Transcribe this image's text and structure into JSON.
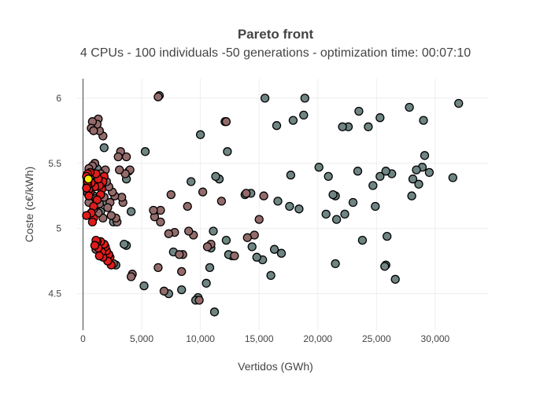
{
  "chart_data": {
    "type": "scatter",
    "title": "Pareto front",
    "subtitle": "4 CPUs - 100 individuals -50 generations - optimization time: 00:07:10",
    "xlabel": "Vertidos (GWh)",
    "ylabel": "Coste (c€/kWh)",
    "xlim": [
      -500,
      34500
    ],
    "ylim": [
      4.22,
      6.15
    ],
    "x_ticks": [
      0,
      5000,
      10000,
      15000,
      20000,
      25000,
      30000
    ],
    "x_tick_labels": [
      "0",
      "5,000",
      "10,000",
      "15,000",
      "20,000",
      "25,000",
      "30,000"
    ],
    "y_ticks": [
      4.5,
      5,
      5.5,
      6
    ],
    "y_tick_labels": [
      "4.5",
      "5",
      "5.5",
      "6"
    ],
    "grid": true,
    "legend": "none",
    "colors": {
      "late": "#6f8583",
      "mid": "#946b6b",
      "early": "#e01b1b",
      "best": "#ffee00",
      "outline": "#000000"
    },
    "series": [
      {
        "group": "late",
        "color": "#6f8583",
        "points": [
          [
            32000,
            5.96
          ],
          [
            31500,
            5.39
          ],
          [
            29500,
            5.43
          ],
          [
            29100,
            5.56
          ],
          [
            28900,
            5.47
          ],
          [
            29000,
            5.83
          ],
          [
            28600,
            5.34
          ],
          [
            28400,
            5.45
          ],
          [
            28100,
            5.38
          ],
          [
            28000,
            5.25
          ],
          [
            27800,
            5.93
          ],
          [
            26600,
            4.61
          ],
          [
            26300,
            5.42
          ],
          [
            25900,
            4.94
          ],
          [
            25800,
            4.72
          ],
          [
            25700,
            4.71
          ],
          [
            25800,
            5.44
          ],
          [
            25300,
            5.4
          ],
          [
            25300,
            5.85
          ],
          [
            24900,
            5.17
          ],
          [
            24700,
            5.33
          ],
          [
            24300,
            5.78
          ],
          [
            23800,
            4.91
          ],
          [
            23500,
            5.9
          ],
          [
            23400,
            5.44
          ],
          [
            23000,
            5.2
          ],
          [
            22600,
            5.78
          ],
          [
            22300,
            5.11
          ],
          [
            22100,
            5.78
          ],
          [
            21600,
            5.07
          ],
          [
            21500,
            4.73
          ],
          [
            21500,
            5.25
          ],
          [
            21300,
            5.26
          ],
          [
            20900,
            5.4
          ],
          [
            20700,
            5.11
          ],
          [
            20100,
            5.47
          ],
          [
            18900,
            6.0
          ],
          [
            18800,
            5.87
          ],
          [
            18400,
            5.15
          ],
          [
            17900,
            5.83
          ],
          [
            17700,
            5.41
          ],
          [
            17600,
            5.17
          ],
          [
            16900,
            4.81
          ],
          [
            16600,
            5.21
          ],
          [
            16500,
            5.79
          ],
          [
            16300,
            4.84
          ],
          [
            16000,
            4.64
          ],
          [
            15500,
            6.0
          ],
          [
            15300,
            4.76
          ],
          [
            14800,
            4.78
          ],
          [
            14400,
            4.86
          ],
          [
            14300,
            5.27
          ],
          [
            13800,
            5.26
          ],
          [
            12700,
            4.79
          ],
          [
            12300,
            5.59
          ],
          [
            12200,
            4.91
          ],
          [
            12100,
            5.82
          ],
          [
            12400,
            4.8
          ],
          [
            11600,
            5.38
          ],
          [
            11300,
            5.4
          ],
          [
            11100,
            4.98
          ],
          [
            11200,
            4.36
          ],
          [
            10900,
            4.85
          ],
          [
            10800,
            4.7
          ],
          [
            10500,
            4.58
          ],
          [
            10000,
            5.72
          ],
          [
            9800,
            4.47
          ],
          [
            9600,
            4.45
          ],
          [
            9200,
            5.36
          ],
          [
            8400,
            4.53
          ],
          [
            7700,
            4.82
          ],
          [
            7300,
            4.5
          ],
          [
            6500,
            6.02
          ],
          [
            5300,
            5.59
          ],
          [
            5200,
            4.56
          ],
          [
            4100,
            5.13
          ],
          [
            3900,
            5.44
          ],
          [
            3700,
            5.38
          ],
          [
            3700,
            4.87
          ],
          [
            3500,
            4.88
          ],
          [
            2800,
            4.72
          ],
          [
            2600,
            5.05
          ],
          [
            2100,
            4.79
          ],
          [
            2000,
            5.2
          ],
          [
            1800,
            5.62
          ],
          [
            1600,
            5.37
          ],
          [
            1500,
            5.13
          ],
          [
            1200,
            5.46
          ],
          [
            1000,
            5.23
          ],
          [
            900,
            5.25
          ],
          [
            800,
            5.36
          ]
        ]
      },
      {
        "group": "mid",
        "color": "#946b6b",
        "points": [
          [
            15400,
            5.25
          ],
          [
            15000,
            5.07
          ],
          [
            14600,
            4.95
          ],
          [
            14000,
            4.93
          ],
          [
            13900,
            5.27
          ],
          [
            12900,
            4.79
          ],
          [
            12200,
            5.82
          ],
          [
            11800,
            5.21
          ],
          [
            10900,
            4.88
          ],
          [
            10600,
            4.86
          ],
          [
            10200,
            5.28
          ],
          [
            9900,
            4.45
          ],
          [
            9400,
            4.95
          ],
          [
            9000,
            4.98
          ],
          [
            8900,
            5.17
          ],
          [
            8500,
            4.8
          ],
          [
            8400,
            4.67
          ],
          [
            8200,
            4.8
          ],
          [
            7800,
            4.97
          ],
          [
            7500,
            5.26
          ],
          [
            7300,
            4.96
          ],
          [
            6900,
            4.52
          ],
          [
            6600,
            5.05
          ],
          [
            6400,
            4.7
          ],
          [
            6600,
            5.14
          ],
          [
            6400,
            6.01
          ],
          [
            6100,
            5.09
          ],
          [
            6000,
            5.14
          ],
          [
            4200,
            4.65
          ],
          [
            4100,
            4.63
          ],
          [
            4000,
            5.45
          ],
          [
            3700,
            5.55
          ],
          [
            3600,
            5.42
          ],
          [
            3400,
            5.2
          ],
          [
            3300,
            5.24
          ],
          [
            3200,
            5.59
          ],
          [
            3100,
            5.45
          ],
          [
            3000,
            5.55
          ],
          [
            2900,
            5.05
          ],
          [
            2800,
            5.08
          ],
          [
            2700,
            5.25
          ],
          [
            2600,
            4.73
          ],
          [
            2500,
            5.28
          ],
          [
            2400,
            5.1
          ],
          [
            2300,
            5.2
          ],
          [
            2200,
            4.75
          ],
          [
            2200,
            5.32
          ],
          [
            2100,
            5.16
          ],
          [
            2000,
            5.36
          ],
          [
            1900,
            5.45
          ],
          [
            1800,
            5.24
          ],
          [
            1700,
            5.08
          ],
          [
            1700,
            5.71
          ],
          [
            1600,
            5.32
          ],
          [
            1500,
            4.82
          ],
          [
            1500,
            5.42
          ],
          [
            1400,
            5.19
          ],
          [
            1400,
            5.75
          ],
          [
            1300,
            5.12
          ],
          [
            1300,
            5.84
          ],
          [
            1200,
            5.8
          ],
          [
            1100,
            4.84
          ],
          [
            1100,
            5.23
          ],
          [
            1000,
            5.5
          ],
          [
            900,
            5.33
          ],
          [
            900,
            5.15
          ],
          [
            800,
            5.82
          ],
          [
            800,
            5.48
          ],
          [
            700,
            5.77
          ],
          [
            700,
            5.1
          ],
          [
            600,
            5.36
          ],
          [
            600,
            5.4
          ],
          [
            500,
            5.46
          ],
          [
            500,
            5.2
          ],
          [
            400,
            5.27
          ],
          [
            900,
            5.75
          ]
        ]
      },
      {
        "group": "early",
        "color": "#e01b1b",
        "points": [
          [
            2400,
            4.72
          ],
          [
            2300,
            4.78
          ],
          [
            2200,
            4.8
          ],
          [
            2100,
            4.75
          ],
          [
            2000,
            4.83
          ],
          [
            1900,
            4.86
          ],
          [
            1800,
            4.88
          ],
          [
            1700,
            4.78
          ],
          [
            1600,
            4.82
          ],
          [
            1500,
            4.9
          ],
          [
            1400,
            4.79
          ],
          [
            1300,
            4.85
          ],
          [
            1200,
            4.9
          ],
          [
            1100,
            4.91
          ],
          [
            1000,
            4.87
          ],
          [
            1800,
            5.4
          ],
          [
            1700,
            5.36
          ],
          [
            1600,
            5.3
          ],
          [
            1500,
            5.26
          ],
          [
            1400,
            5.33
          ],
          [
            1300,
            5.38
          ],
          [
            1200,
            5.22
          ],
          [
            1100,
            5.42
          ],
          [
            1000,
            5.32
          ],
          [
            900,
            5.17
          ],
          [
            900,
            5.08
          ],
          [
            800,
            5.05
          ],
          [
            700,
            5.12
          ],
          [
            700,
            5.35
          ],
          [
            600,
            5.28
          ],
          [
            600,
            5.43
          ],
          [
            500,
            5.3
          ],
          [
            500,
            5.25
          ],
          [
            400,
            5.33
          ],
          [
            400,
            5.36
          ],
          [
            400,
            5.42
          ],
          [
            300,
            5.4
          ],
          [
            300,
            5.31
          ],
          [
            300,
            5.1
          ]
        ]
      },
      {
        "group": "best",
        "color": "#ffee00",
        "points": [
          [
            450,
            5.38
          ]
        ]
      }
    ]
  }
}
